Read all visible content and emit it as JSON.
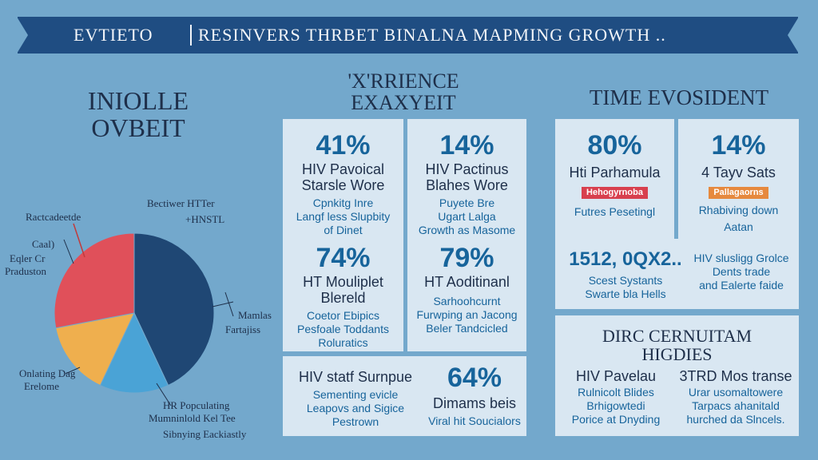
{
  "banner": {
    "left": "EVTIETO",
    "right": "RESINVERS THRBET BINALNA MAPMING GROWTH .."
  },
  "headings": {
    "left": [
      "INIOLLE",
      "OVBEIT"
    ],
    "mid": [
      "'X'RRIENCE",
      "EXAXYEIT"
    ],
    "right": "TIME EVOSIDENT",
    "bottom_right": [
      "DIRC CERNUITAM",
      "HIGDIES"
    ]
  },
  "colors": {
    "pie_red": "#e0505a",
    "pie_navy": "#1f4774",
    "pie_light": "#4aa3d6",
    "pie_yellow": "#efaf4e",
    "tag_red": "#d8404e",
    "tag_orange": "#e6893e",
    "accent": "#17649b"
  },
  "chart_data": {
    "type": "pie",
    "title": "",
    "slices": [
      {
        "label": "Bectiwer HTTer",
        "value": 43,
        "color": "#1f4774"
      },
      {
        "label": "HR Popculating",
        "value": 14,
        "color": "#4aa3d6"
      },
      {
        "label": "Onlating Dag",
        "value": 15,
        "color": "#efaf4e"
      },
      {
        "label": "Ractcadeetde",
        "value": 28,
        "color": "#e0505a"
      }
    ],
    "labels": {
      "top_left": "Ractcadeetde",
      "left_a": "Caal)",
      "left_b": "Eqler Cr",
      "left_c": "Praduston",
      "top_mid_a": "Bectiwer HTTer",
      "top_mid_b": "+HNSTL",
      "right_a": "Mamlas",
      "right_b": "Fartajiss",
      "bottom_left_a": "Onlating Dag",
      "bottom_left_b": "Erelome",
      "bottom_a": "HR Popculating",
      "bottom_b": "Mumninlold Kel Tee",
      "bottom_c": "Sibnying Eackiastly"
    }
  },
  "mid_cards": [
    {
      "stat": "41%",
      "title_a": "HIV Pavoical",
      "title_b": "Starsle Wore",
      "desc_a": "Cpnkitg Inre",
      "desc_b": "Langf less Slupbity",
      "desc_c": "of Dinet"
    },
    {
      "stat": "14%",
      "title_a": "HIV Pactinus",
      "title_b": "Blahes Wore",
      "desc_a": "Puyete Bre",
      "desc_b": "Ugart Lalga",
      "desc_c": "Growth as Masome"
    },
    {
      "stat": "74%",
      "title_a": "HT Mouliplet",
      "title_b": "Blereld",
      "desc_a": "Coetor Ebipics",
      "desc_b": "Pesfoale Toddants",
      "desc_c": "Roluratics"
    },
    {
      "stat": "79%",
      "title_a": "HT Aoditinanl",
      "title_b": "",
      "desc_a": "Sarhoohcurnt",
      "desc_b": "Furwping an Jacong",
      "desc_c": "Beler Tandcicled"
    }
  ],
  "bottom_card": {
    "title": "HIV statf Surnpue",
    "desc_a": "Sementing evicle",
    "desc_b": "Leapovs and Sigice",
    "desc_c": "Pestrown",
    "stat": "64%",
    "stat_title": "Dimams beis",
    "stat_desc": "Viral hit Soucialors"
  },
  "right_cards": [
    {
      "stat": "80%",
      "title": "Hti Parhamula",
      "tag": "Hehogyrnoba",
      "desc": "Futres Pesetingl"
    },
    {
      "stat": "14%",
      "title": "4 Tayv Sats",
      "tag": "Pallagaorns",
      "desc_a": "Rhabiving down",
      "desc_b": "Aatan"
    }
  ],
  "right_wide": {
    "stat": "1512, 0QX2..",
    "desc_a": "Scest Systants",
    "desc_b": "Swarte bla Hells",
    "side_a": "HIV slusligg Grolce",
    "side_b": "Dents trade",
    "side_c": "and Ealerte faide"
  },
  "bottom_right": {
    "col1_title": "HIV Pavelau",
    "col1_a": "Rulnicolt Blides",
    "col1_b": "Brhigowtedi",
    "col1_c": "Porice at Dnyding",
    "col2_title": "3TRD Mos transe",
    "col2_a": "Urar usomaltowere",
    "col2_b": "Tarpacs ahanitald",
    "col2_c": "hurched da Slncels."
  }
}
